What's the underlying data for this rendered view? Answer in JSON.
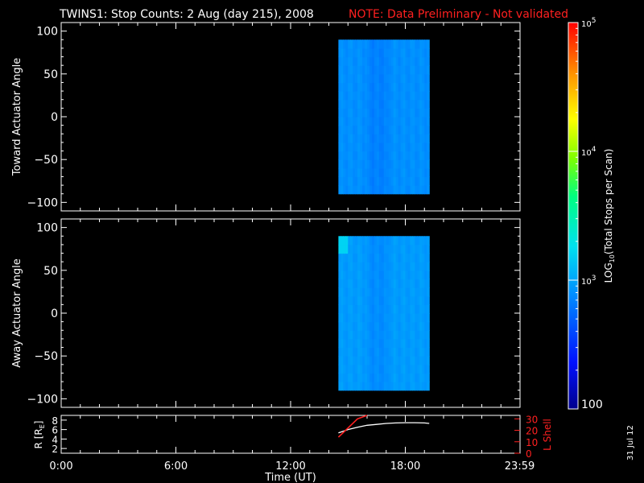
{
  "header": {
    "title": "TWINS1: Stop Counts:  2 Aug (day 215), 2008",
    "note": "NOTE: Data Preliminary - Not validated"
  },
  "side_date": "31 Jul 12",
  "colors": {
    "frame": "#ffffff",
    "note": "#ff2020",
    "background": "#000000",
    "lshell": "#ff2020",
    "radius": "#ffffff"
  },
  "chart_data": [
    {
      "type": "heatmap",
      "ylabel": "Toward Actuator Angle",
      "ylim": [
        -110,
        110
      ],
      "yticks": [
        100,
        50,
        0,
        -50,
        -100
      ],
      "xlim": [
        0,
        24
      ],
      "data_window_hours": [
        14.5,
        19.25
      ],
      "angle_range": [
        -90,
        90
      ],
      "color_level_log10_typical": 2.9,
      "color_level_log10_range": [
        2.8,
        3.0
      ]
    },
    {
      "type": "heatmap",
      "ylabel": "Away Actuator Angle",
      "ylim": [
        -110,
        110
      ],
      "yticks": [
        100,
        50,
        0,
        -50,
        -100
      ],
      "xlim": [
        0,
        24
      ],
      "data_window_hours": [
        14.5,
        19.25
      ],
      "angle_range": [
        -90,
        90
      ],
      "color_level_log10_typical": 2.95,
      "color_level_log10_range": [
        2.85,
        3.2
      ]
    },
    {
      "type": "line",
      "ylabel": "R [R",
      "ylabel_sub": "E",
      "ylabel_end": "]",
      "ylim": [
        1,
        9
      ],
      "yticks": [
        2,
        4,
        6,
        8
      ],
      "right_ylabel": "L Shell",
      "right_ylim": [
        0,
        33
      ],
      "right_yticks": [
        0,
        10,
        20,
        30
      ],
      "series": [
        {
          "name": "R",
          "x": [
            14.5,
            15.0,
            15.5,
            16.0,
            16.5,
            17.0,
            17.5,
            18.0,
            18.5,
            19.0,
            19.25
          ],
          "y": [
            5.3,
            6.0,
            6.5,
            6.9,
            7.1,
            7.3,
            7.4,
            7.45,
            7.45,
            7.4,
            7.3
          ]
        },
        {
          "name": "L Shell",
          "x": [
            14.5,
            15.0,
            15.5,
            16.0
          ],
          "y": [
            14,
            22,
            30,
            33
          ]
        }
      ]
    }
  ],
  "xaxis": {
    "label": "Time (UT)",
    "ticks": [
      {
        "value": 0,
        "label": "0:00"
      },
      {
        "value": 6,
        "label": "6:00"
      },
      {
        "value": 12,
        "label": "12:00"
      },
      {
        "value": 18,
        "label": "18:00"
      },
      {
        "value": 23.98,
        "label": "23:59"
      }
    ]
  },
  "colorbar": {
    "label_pre": "LOG",
    "label_sub": "10",
    "label_post": "(Total Stops per Scan)",
    "log_range": [
      2,
      5
    ],
    "ticks": [
      {
        "log": 5,
        "base": "10",
        "exp": "5"
      },
      {
        "log": 4,
        "base": "10",
        "exp": "4"
      },
      {
        "log": 3,
        "base": "10",
        "exp": "3"
      }
    ],
    "bottom_label": "100"
  }
}
